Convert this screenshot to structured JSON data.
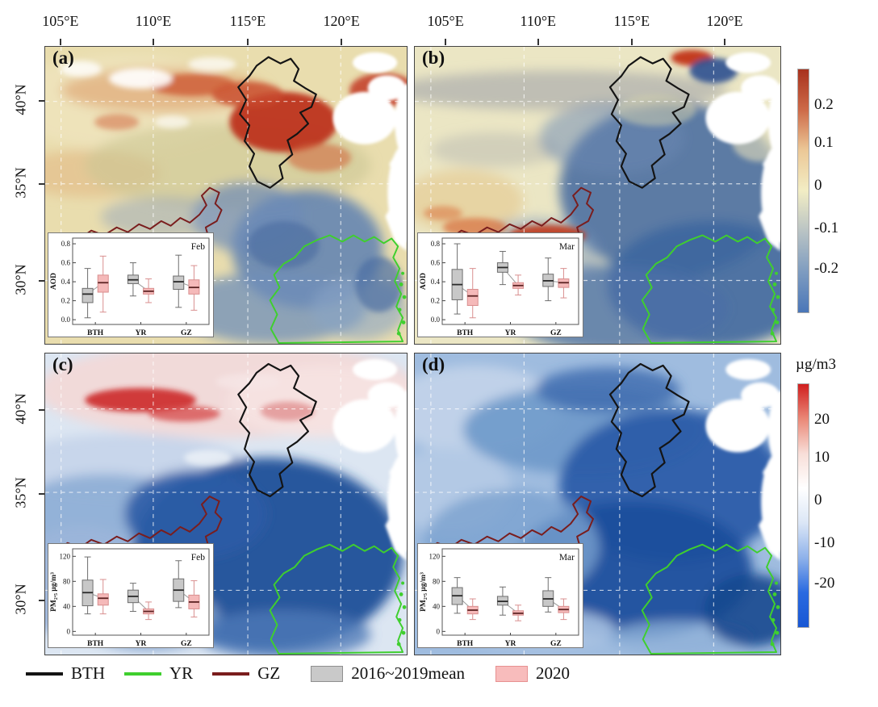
{
  "axes": {
    "lon_labels": [
      "105°E",
      "110°E",
      "115°E",
      "120°E"
    ],
    "lat_labels": [
      "40°N",
      "35°N",
      "30°N"
    ]
  },
  "panels": [
    {
      "label": "(a)"
    },
    {
      "label": "(b)"
    },
    {
      "label": "(c)"
    },
    {
      "label": "(d)"
    }
  ],
  "colorbars": {
    "aod": {
      "ticks": [
        "0.2",
        "0.1",
        "0",
        "-0.1",
        "-0.2"
      ],
      "stops": [
        "#a8321e",
        "#cd6a48",
        "#ecc897",
        "#f2edc4",
        "#b9c3c4",
        "#7e9cc0",
        "#4a76b8"
      ]
    },
    "pm": {
      "unit": "µg/m3",
      "ticks": [
        "20",
        "10",
        "0",
        "-10",
        "-20"
      ],
      "stops": [
        "#d01f1f",
        "#ea8877",
        "#f8ded8",
        "#ffffff",
        "#dbe6f6",
        "#8fb2ea",
        "#2a6ae0",
        "#1857d4"
      ]
    }
  },
  "legend": {
    "regions": [
      {
        "label": "BTH",
        "color": "#141414"
      },
      {
        "label": "YR",
        "color": "#3fcf2e"
      },
      {
        "label": "GZ",
        "color": "#7a1d1d"
      }
    ],
    "series": [
      {
        "label": "2016~2019mean",
        "fill": "#c9c9c9",
        "border": "#8f8f8f"
      },
      {
        "label": "2020",
        "fill": "#f8bcbc",
        "border": "#e79191"
      }
    ]
  },
  "chart_data": [
    {
      "id": "inset_a",
      "type": "boxplot",
      "title": "Feb",
      "ylabel": "AOD",
      "ylim": [
        -0.05,
        0.86
      ],
      "yticks": [
        0,
        0.2,
        0.4,
        0.6,
        0.8
      ],
      "ytick_labels": [
        "0.0",
        "0.2",
        "0.4",
        "0.6",
        "0.8"
      ],
      "categories": [
        "BTH",
        "YR",
        "GZ"
      ],
      "series": [
        {
          "name": "2016~2019mean",
          "fill": "#c8c8c8",
          "edge": "#6e6e6e",
          "median_color": "#2a2a2a",
          "boxes": [
            [
              0.02,
              0.18,
              0.27,
              0.33,
              0.54
            ],
            [
              0.25,
              0.38,
              0.42,
              0.47,
              0.6
            ],
            [
              0.13,
              0.32,
              0.4,
              0.46,
              0.68
            ]
          ]
        },
        {
          "name": "2020",
          "fill": "#f5b9b9",
          "edge": "#d98f8f",
          "median_color": "#5d2424",
          "boxes": [
            [
              0.08,
              0.29,
              0.39,
              0.47,
              0.67
            ],
            [
              0.18,
              0.27,
              0.3,
              0.33,
              0.43
            ],
            [
              0.1,
              0.27,
              0.34,
              0.42,
              0.57
            ]
          ]
        }
      ]
    },
    {
      "id": "inset_b",
      "type": "boxplot",
      "title": "Mar",
      "ylabel": "AOD",
      "ylim": [
        -0.05,
        0.86
      ],
      "yticks": [
        0,
        0.2,
        0.4,
        0.6,
        0.8
      ],
      "ytick_labels": [
        "0.0",
        "0.2",
        "0.4",
        "0.6",
        "0.8"
      ],
      "categories": [
        "BTH",
        "YR",
        "GZ"
      ],
      "series": [
        {
          "name": "2016~2019mean",
          "fill": "#c8c8c8",
          "edge": "#6e6e6e",
          "median_color": "#2a2a2a",
          "boxes": [
            [
              0.06,
              0.21,
              0.37,
              0.53,
              0.8
            ],
            [
              0.37,
              0.5,
              0.55,
              0.6,
              0.72
            ],
            [
              0.2,
              0.35,
              0.41,
              0.48,
              0.65
            ]
          ]
        },
        {
          "name": "2020",
          "fill": "#f5b9b9",
          "edge": "#d98f8f",
          "median_color": "#5d2424",
          "boxes": [
            [
              0.02,
              0.15,
              0.25,
              0.32,
              0.54
            ],
            [
              0.26,
              0.33,
              0.36,
              0.39,
              0.47
            ],
            [
              0.23,
              0.34,
              0.39,
              0.43,
              0.54
            ]
          ]
        }
      ]
    },
    {
      "id": "inset_c",
      "type": "boxplot",
      "title": "Feb",
      "ylabel": "PM₂.₅ µg/m³",
      "ylim": [
        -6,
        132
      ],
      "yticks": [
        0,
        40,
        80,
        120
      ],
      "ytick_labels": [
        "0",
        "40",
        "80",
        "120"
      ],
      "categories": [
        "BTH",
        "YR",
        "GZ"
      ],
      "series": [
        {
          "name": "2016~2019mean",
          "fill": "#c8c8c8",
          "edge": "#6e6e6e",
          "median_color": "#2a2a2a",
          "boxes": [
            [
              28,
              41,
              62,
              82,
              119
            ],
            [
              32,
              46,
              56,
              66,
              77
            ],
            [
              38,
              48,
              66,
              84,
              113
            ]
          ]
        },
        {
          "name": "2020",
          "fill": "#f5b9b9",
          "edge": "#d98f8f",
          "median_color": "#5d2424",
          "boxes": [
            [
              28,
              42,
              53,
              60,
              83
            ],
            [
              19,
              28,
              32,
              36,
              47
            ],
            [
              23,
              36,
              47,
              58,
              81
            ]
          ]
        }
      ]
    },
    {
      "id": "inset_d",
      "type": "boxplot",
      "title": "Mar",
      "ylabel": "PM₂.₅ µg/m³",
      "ylim": [
        -6,
        132
      ],
      "yticks": [
        0,
        40,
        80,
        120
      ],
      "ytick_labels": [
        "0",
        "40",
        "80",
        "120"
      ],
      "categories": [
        "BTH",
        "YR",
        "GZ"
      ],
      "series": [
        {
          "name": "2016~2019mean",
          "fill": "#c8c8c8",
          "edge": "#6e6e6e",
          "median_color": "#2a2a2a",
          "boxes": [
            [
              29,
              43,
              57,
              70,
              86
            ],
            [
              26,
              42,
              48,
              56,
              71
            ],
            [
              31,
              40,
              52,
              65,
              86
            ]
          ]
        },
        {
          "name": "2020",
          "fill": "#f5b9b9",
          "edge": "#d98f8f",
          "median_color": "#5d2424",
          "boxes": [
            [
              19,
              28,
              34,
              40,
              52
            ],
            [
              17,
              26,
              29,
              33,
              42
            ],
            [
              19,
              30,
              35,
              40,
              52
            ]
          ]
        }
      ]
    }
  ]
}
